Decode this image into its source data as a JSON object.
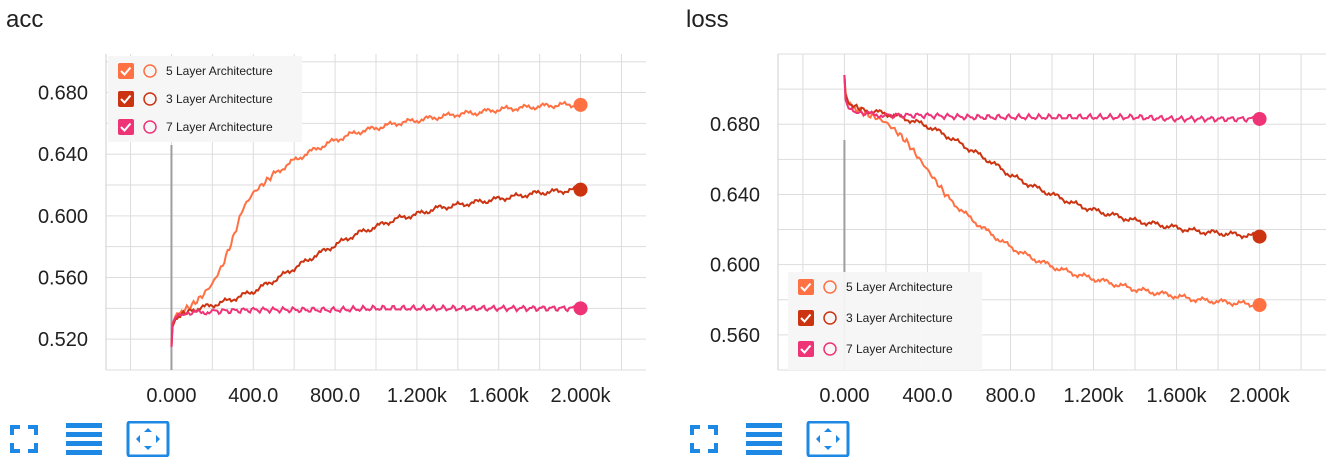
{
  "panels": [
    {
      "title": "acc"
    },
    {
      "title": "loss"
    }
  ],
  "toolbar_icons": [
    "fullscreen-icon",
    "data-table-icon",
    "fit-domain-icon"
  ],
  "colors": {
    "five_layer": "#ff7043",
    "three_layer": "#cc3311",
    "seven_layer": "#ee3377",
    "grid": "#dddddd",
    "zero_line": "#9e9e9e",
    "toolbar_icon": "#1e88e5",
    "legend_bg": "#f5f5f5"
  },
  "chart_data": [
    {
      "type": "line",
      "title": "acc",
      "xlim": [
        -320,
        2320
      ],
      "ylim": [
        0.5,
        0.705
      ],
      "x_ticks": [
        "0.000",
        "400.0",
        "800.0",
        "1.200k",
        "1.600k",
        "2.000k"
      ],
      "y_ticks": [
        "0.520",
        "0.560",
        "0.600",
        "0.640",
        "0.680"
      ],
      "grid": true,
      "legend_position": "top-left",
      "series": [
        {
          "name": "5 Layer Architecture",
          "color_key": "five_layer",
          "x": [
            0,
            5,
            20,
            50,
            100,
            150,
            200,
            250,
            300,
            350,
            400,
            450,
            500,
            600,
            700,
            800,
            900,
            1000,
            1100,
            1200,
            1300,
            1400,
            1500,
            1600,
            1700,
            1800,
            1900,
            2000
          ],
          "y": [
            0.515,
            0.53,
            0.535,
            0.538,
            0.542,
            0.548,
            0.556,
            0.568,
            0.585,
            0.605,
            0.615,
            0.621,
            0.627,
            0.636,
            0.643,
            0.649,
            0.654,
            0.657,
            0.66,
            0.662,
            0.664,
            0.666,
            0.667,
            0.669,
            0.67,
            0.671,
            0.672,
            0.672
          ]
        },
        {
          "name": "3 Layer Architecture",
          "color_key": "three_layer",
          "x": [
            0,
            5,
            20,
            50,
            100,
            200,
            300,
            400,
            500,
            600,
            700,
            800,
            900,
            1000,
            1100,
            1200,
            1300,
            1400,
            1500,
            1600,
            1700,
            1800,
            1900,
            2000
          ],
          "y": [
            0.515,
            0.528,
            0.533,
            0.536,
            0.539,
            0.542,
            0.546,
            0.551,
            0.558,
            0.566,
            0.574,
            0.581,
            0.588,
            0.593,
            0.598,
            0.601,
            0.605,
            0.607,
            0.609,
            0.611,
            0.613,
            0.615,
            0.616,
            0.617
          ]
        },
        {
          "name": "7 Layer Architecture",
          "color_key": "seven_layer",
          "x": [
            0,
            5,
            20,
            50,
            100,
            200,
            400,
            600,
            800,
            1000,
            1200,
            1400,
            1600,
            1800,
            2000
          ],
          "y": [
            0.515,
            0.53,
            0.534,
            0.536,
            0.537,
            0.538,
            0.539,
            0.539,
            0.539,
            0.54,
            0.54,
            0.54,
            0.54,
            0.54,
            0.54
          ]
        }
      ]
    },
    {
      "type": "line",
      "title": "loss",
      "xlim": [
        -320,
        2320
      ],
      "ylim": [
        0.54,
        0.72
      ],
      "x_ticks": [
        "0.000",
        "400.0",
        "800.0",
        "1.200k",
        "1.600k",
        "2.000k"
      ],
      "y_ticks": [
        "0.560",
        "0.600",
        "0.640",
        "0.680"
      ],
      "grid": true,
      "legend_position": "bottom-left",
      "series": [
        {
          "name": "5 Layer Architecture",
          "color_key": "five_layer",
          "x": [
            0,
            5,
            20,
            50,
            100,
            150,
            200,
            250,
            300,
            350,
            400,
            450,
            500,
            600,
            700,
            800,
            900,
            1000,
            1100,
            1200,
            1300,
            1400,
            1500,
            1600,
            1700,
            1800,
            1900,
            2000
          ],
          "y": [
            0.708,
            0.698,
            0.692,
            0.689,
            0.686,
            0.684,
            0.681,
            0.676,
            0.67,
            0.662,
            0.654,
            0.646,
            0.638,
            0.627,
            0.618,
            0.61,
            0.604,
            0.599,
            0.595,
            0.592,
            0.589,
            0.586,
            0.584,
            0.582,
            0.58,
            0.579,
            0.578,
            0.577
          ]
        },
        {
          "name": "3 Layer Architecture",
          "color_key": "three_layer",
          "x": [
            0,
            5,
            20,
            50,
            100,
            200,
            300,
            400,
            500,
            600,
            700,
            800,
            900,
            1000,
            1100,
            1200,
            1300,
            1400,
            1500,
            1600,
            1700,
            1800,
            1900,
            2000
          ],
          "y": [
            0.708,
            0.697,
            0.692,
            0.69,
            0.688,
            0.686,
            0.683,
            0.679,
            0.673,
            0.666,
            0.659,
            0.651,
            0.645,
            0.64,
            0.635,
            0.631,
            0.628,
            0.625,
            0.623,
            0.621,
            0.619,
            0.618,
            0.617,
            0.616
          ]
        },
        {
          "name": "7 Layer Architecture",
          "color_key": "seven_layer",
          "x": [
            0,
            5,
            20,
            50,
            100,
            200,
            400,
            600,
            800,
            1000,
            1200,
            1400,
            1600,
            1800,
            2000
          ],
          "y": [
            0.708,
            0.694,
            0.689,
            0.687,
            0.686,
            0.685,
            0.685,
            0.684,
            0.684,
            0.684,
            0.684,
            0.684,
            0.683,
            0.683,
            0.683
          ]
        }
      ]
    }
  ]
}
